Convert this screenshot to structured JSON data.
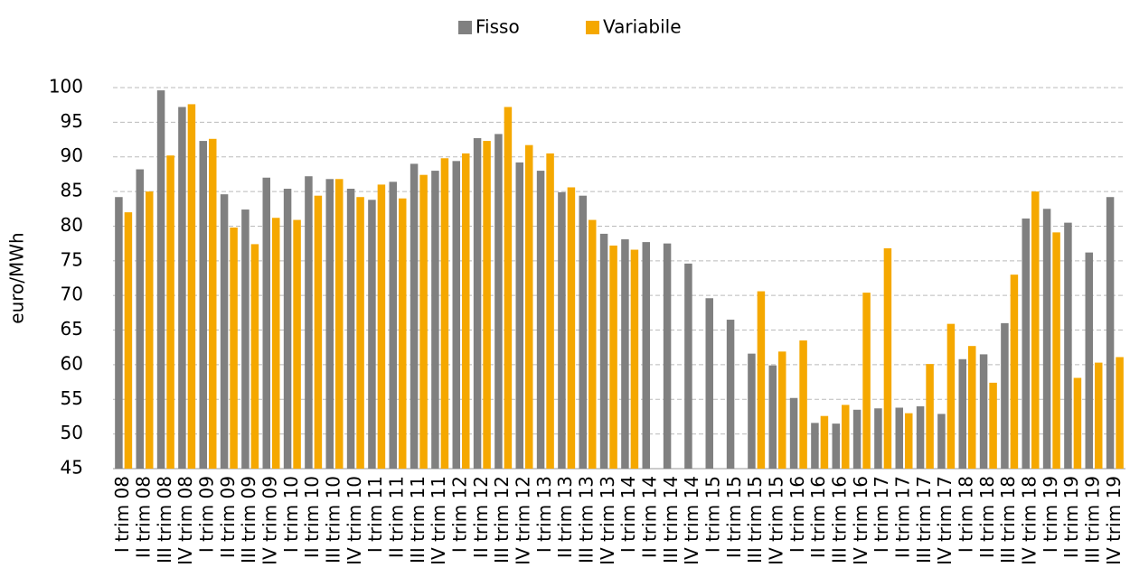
{
  "chart_data": {
    "type": "bar",
    "y_label": "euro/MWh",
    "categories": [
      "I trim 08",
      "II trim 08",
      "III trim 08",
      "IV trim 08",
      "I trim 09",
      "II trim 09",
      "III trim 09",
      "IV trim 09",
      "I trim 10",
      "II trim 10",
      "III trim 10",
      "IV trim 10",
      "I trim 11",
      "II trim 11",
      "III trim 11",
      "IV trim 11",
      "I trim 12",
      "II trim 12",
      "III trim 12",
      "IV trim 12",
      "I trim 13",
      "II trim 13",
      "III trim 13",
      "IV trim 13",
      "I trim 14",
      "II trim 14",
      "III trim 14",
      "IV trim 14",
      "I trim 15",
      "II trim 15",
      "III trim 15",
      "IV trim 15",
      "I trim 16",
      "II trim 16",
      "III trim 16",
      "IV trim 16",
      "I trim 17",
      "II trim 17",
      "III trim 17",
      "IV trim 17",
      "I trim 18",
      "II trim 18",
      "III trim 18",
      "IV trim 18",
      "I trim 19",
      "II trim 19",
      "III trim 19",
      "IV trim 19"
    ],
    "series": [
      {
        "name": "Fisso",
        "color": "#808080",
        "values": [
          84.2,
          88.2,
          99.6,
          97.2,
          92.3,
          84.6,
          82.4,
          87,
          85.4,
          87.2,
          86.8,
          85.4,
          83.8,
          86.4,
          89,
          88,
          89.4,
          92.7,
          93.3,
          89.2,
          88,
          84.9,
          84.4,
          78.9,
          78.1,
          77.7,
          77.5,
          74.6,
          69.6,
          66.5,
          61.6,
          59.9,
          55.2,
          51.6,
          51.5,
          53.5,
          53.7,
          53.8,
          54,
          52.9,
          60.8,
          61.5,
          66,
          81.1,
          82.5,
          80.5,
          76.2,
          84.2
        ]
      },
      {
        "name": "Variabile",
        "color": "#f5a800",
        "values": [
          82,
          85,
          90.2,
          97.6,
          92.6,
          79.8,
          77.4,
          81.2,
          80.9,
          84.4,
          86.8,
          84.2,
          86,
          84,
          87.4,
          89.8,
          90.5,
          92.3,
          97.2,
          91.7,
          90.5,
          85.6,
          80.9,
          77.2,
          76.6,
          null,
          null,
          null,
          null,
          null,
          70.6,
          61.9,
          63.5,
          52.6,
          54.2,
          70.4,
          76.8,
          53,
          60.1,
          65.9,
          62.7,
          57.4,
          73,
          85,
          79.1,
          58.1,
          60.3,
          61.1
        ]
      }
    ],
    "ylim": [
      45,
      100
    ],
    "yticks": [
      45,
      50,
      55,
      60,
      65,
      70,
      75,
      80,
      85,
      90,
      95,
      100
    ],
    "grid": true,
    "legend": "top"
  }
}
